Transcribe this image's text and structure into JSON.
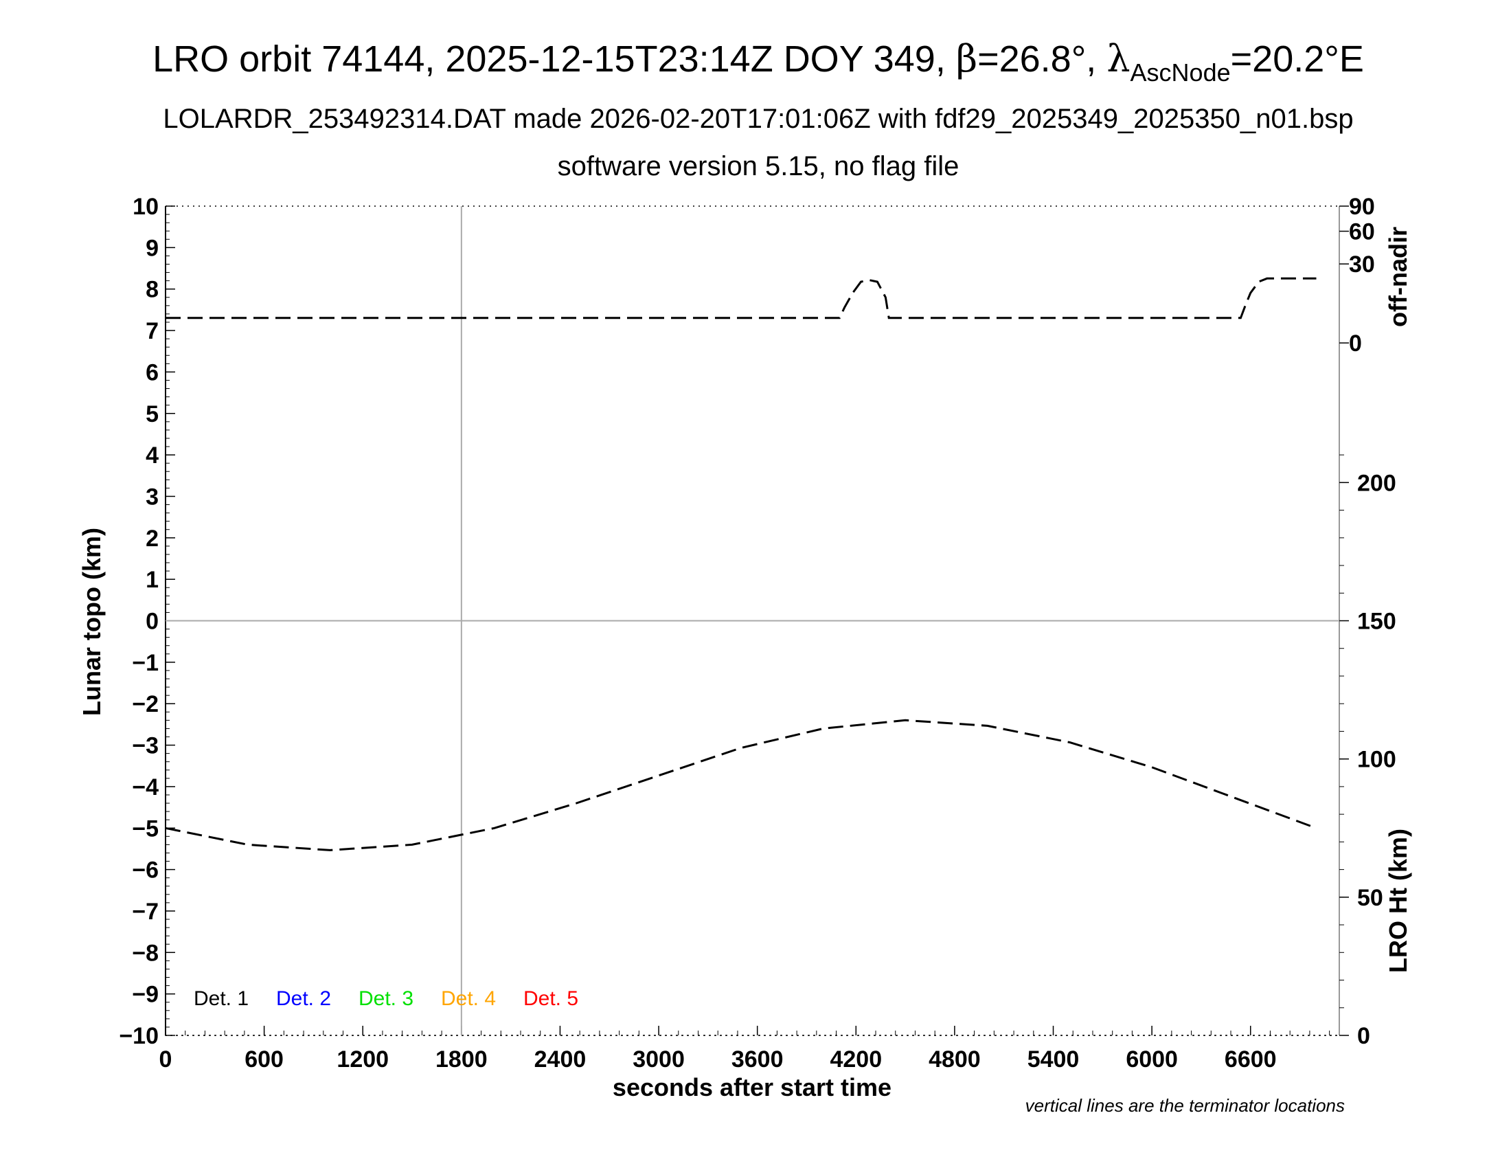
{
  "chart_data": {
    "type": "line",
    "title": {
      "prefix": "LRO orbit 74144, 2025-12-15T23:14Z DOY 349, ",
      "beta_symbol": "β",
      "beta_value": "=26.8°, ",
      "lambda_symbol": "λ",
      "lambda_subscript": "AscNode",
      "lambda_value": "=20.2°E"
    },
    "subtitle": "LOLARDR_253492314.DAT made 2026-02-20T17:01:06Z with fdf29_2025349_2025350_n01.bsp",
    "subtitle2": "software version 5.15, no flag file",
    "xlabel": "seconds after start time",
    "ylabel": "Lunar topo (km)",
    "y2label_top": "off-nadir",
    "y2label_bottom": "LRO Ht (km)",
    "note": "vertical lines are the terminator locations",
    "xlim": [
      0,
      7140
    ],
    "ylim": [
      -10,
      10
    ],
    "x_ticks": [
      "0",
      "600",
      "1200",
      "1800",
      "2400",
      "3000",
      "3600",
      "4200",
      "4800",
      "5400",
      "6000",
      "6600"
    ],
    "x_tick_values": [
      0,
      600,
      1200,
      1800,
      2400,
      3000,
      3600,
      4200,
      4800,
      5400,
      6000,
      6600
    ],
    "y_ticks": [
      "10",
      "9",
      "8",
      "7",
      "6",
      "5",
      "4",
      "3",
      "2",
      "1",
      "0",
      "−1",
      "−2",
      "−3",
      "−4",
      "−5",
      "−6",
      "−7",
      "−8",
      "−9",
      "−10"
    ],
    "y_tick_values": [
      10,
      9,
      8,
      7,
      6,
      5,
      4,
      3,
      2,
      1,
      0,
      -1,
      -2,
      -3,
      -4,
      -5,
      -6,
      -7,
      -8,
      -9,
      -10
    ],
    "offnadir_axis": {
      "ticks": [
        "90",
        "60",
        "30",
        "0"
      ],
      "tick_values": [
        90,
        60,
        30,
        0
      ],
      "scale": "sqrt",
      "range": [
        0,
        90
      ]
    },
    "height_axis": {
      "ticks": [
        "200",
        "150",
        "100",
        "50",
        "0"
      ],
      "tick_values": [
        200,
        150,
        100,
        50,
        0
      ],
      "range": [
        0,
        300
      ]
    },
    "terminator_lines": [
      1800
    ],
    "zero_line": 0,
    "grid": "dotted border ticks",
    "legend": {
      "placement": "bottom-left",
      "entries": [
        {
          "label": "Det. 1",
          "color": "#000000"
        },
        {
          "label": "Det. 2",
          "color": "#0000ff"
        },
        {
          "label": "Det. 3",
          "color": "#00e000"
        },
        {
          "label": "Det. 4",
          "color": "#ffa500"
        },
        {
          "label": "Det. 5",
          "color": "#ff0000"
        }
      ]
    },
    "series": [
      {
        "axis": "off-nadir",
        "style": "dashed",
        "color": "#000000",
        "x": [
          0,
          1000,
          2000,
          3000,
          4000,
          4100,
          4130,
          4180,
          4230,
          4280,
          4330,
          4380,
          4400,
          4500,
          5000,
          6000,
          6540,
          6570,
          6600,
          6650,
          6700,
          6800,
          7000
        ],
        "y": [
          3,
          3,
          3,
          3,
          3,
          3,
          6,
          12,
          18,
          19,
          18,
          10,
          3,
          3,
          3,
          3,
          3,
          7,
          12,
          18,
          20,
          20,
          20
        ]
      },
      {
        "axis": "LRO Ht (km)",
        "style": "dashed",
        "color": "#000000",
        "x": [
          0,
          500,
          1000,
          1500,
          2000,
          2500,
          3000,
          3500,
          4000,
          4500,
          5000,
          5500,
          6000,
          6500,
          7000
        ],
        "y": [
          75,
          69,
          67,
          69,
          75,
          84,
          94,
          104,
          111,
          114,
          112,
          106,
          97,
          86,
          75
        ]
      }
    ]
  }
}
